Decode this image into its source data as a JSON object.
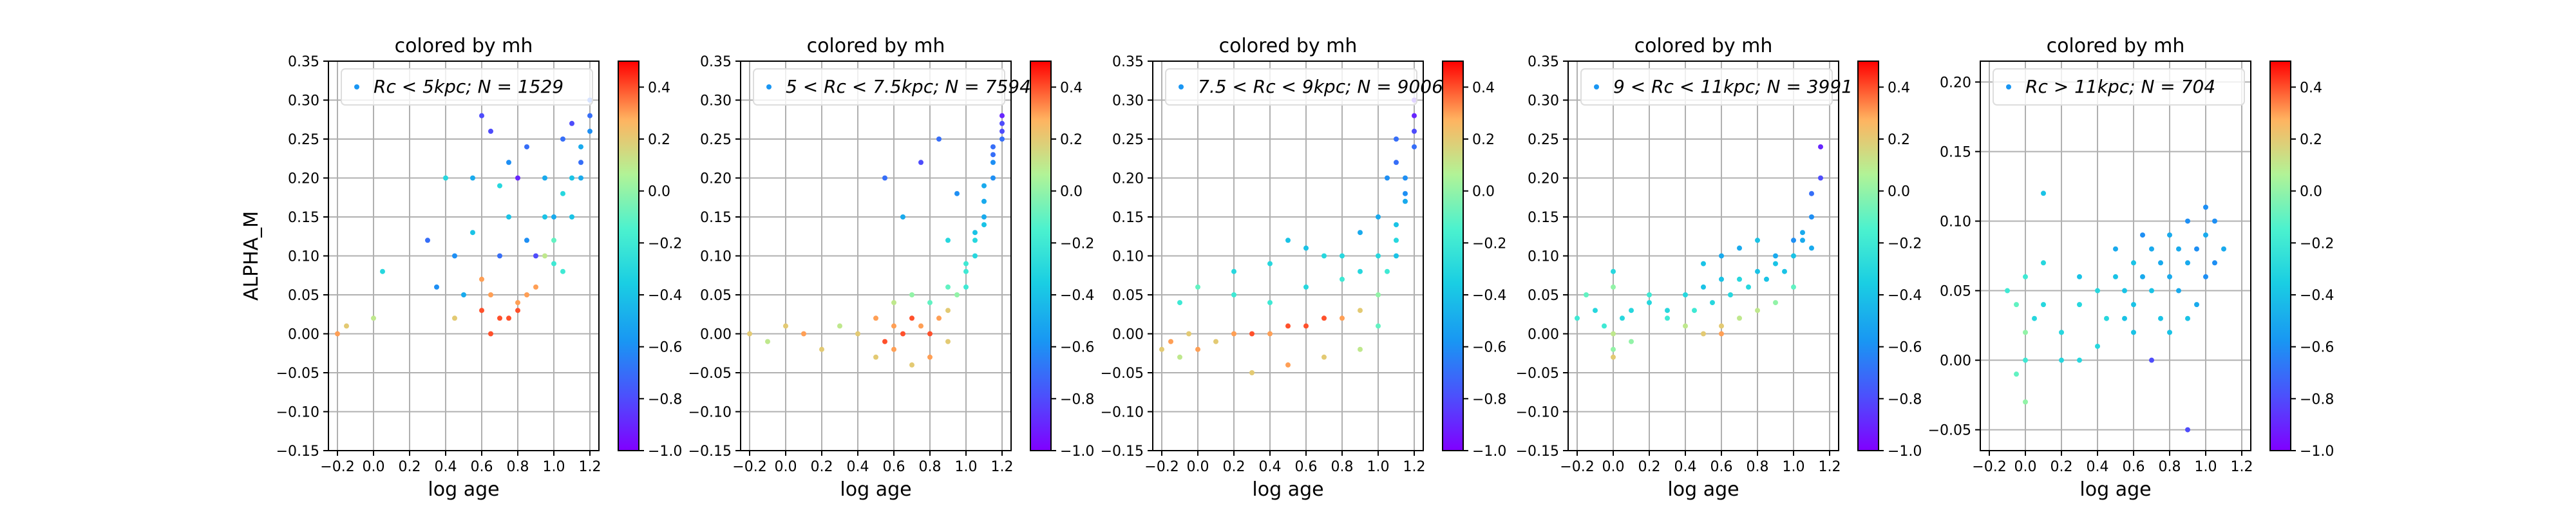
{
  "figure": {
    "background": "#ffffff"
  },
  "chart_data": [
    {
      "type": "scatter",
      "title": "colored by mh",
      "xlabel": "log age",
      "ylabel": "ALPHA_M",
      "xlim": [
        -0.25,
        1.25
      ],
      "ylim": [
        -0.15,
        0.35
      ],
      "xticks": [
        -0.2,
        0.0,
        0.2,
        0.4,
        0.6,
        0.8,
        1.0,
        1.2
      ],
      "yticks": [
        -0.15,
        -0.1,
        -0.05,
        0.0,
        0.05,
        0.1,
        0.15,
        0.2,
        0.25,
        0.3,
        0.35
      ],
      "grid": true,
      "legend": {
        "placement": "top",
        "label_prefix": "Rc < 5kpc;",
        "label_n": "N = 1529"
      },
      "colorbar": {
        "min": -1.0,
        "max": 0.5,
        "ticks": [
          -1.0,
          -0.8,
          -0.6,
          -0.4,
          -0.2,
          0.0,
          0.2,
          0.4
        ],
        "colormap": "rainbow"
      },
      "series": [
        {
          "x": [
            -0.2,
            -0.15,
            0.0,
            0.05,
            0.3,
            0.35,
            0.4,
            0.45,
            0.5,
            0.55,
            0.6,
            0.6,
            0.65,
            0.7,
            0.7,
            0.75,
            0.8,
            0.8,
            0.85,
            0.9,
            0.95,
            1.0,
            1.0,
            1.05,
            1.1,
            1.15,
            1.2,
            0.6,
            0.65,
            0.7,
            0.75,
            0.8,
            0.85,
            0.9,
            0.95,
            1.0,
            1.05,
            1.1,
            1.15,
            1.2,
            1.05,
            1.1,
            1.15,
            1.2,
            0.45,
            0.55,
            0.65,
            0.75,
            0.85,
            0.95
          ],
          "y": [
            0.0,
            0.01,
            0.02,
            0.08,
            0.12,
            0.06,
            0.2,
            0.02,
            0.05,
            0.13,
            0.28,
            0.07,
            0.0,
            0.1,
            0.19,
            0.15,
            0.04,
            0.2,
            0.12,
            0.1,
            0.2,
            0.09,
            0.15,
            0.25,
            0.27,
            0.22,
            0.3,
            0.03,
            0.05,
            0.02,
            0.02,
            0.03,
            0.05,
            0.06,
            0.1,
            0.12,
            0.18,
            0.2,
            0.24,
            0.26,
            0.08,
            0.15,
            0.2,
            0.28,
            0.1,
            0.2,
            0.26,
            0.22,
            0.24,
            0.15
          ],
          "c": [
            0.3,
            0.2,
            0.1,
            -0.3,
            -0.7,
            -0.6,
            -0.3,
            0.2,
            -0.5,
            -0.4,
            -0.8,
            0.3,
            0.4,
            -0.7,
            -0.3,
            -0.4,
            0.3,
            -0.9,
            -0.6,
            -0.8,
            -0.5,
            -0.2,
            -0.5,
            -0.7,
            -0.8,
            -0.7,
            -0.7,
            0.4,
            0.3,
            0.4,
            0.4,
            0.4,
            0.3,
            0.3,
            0.1,
            -0.1,
            -0.3,
            -0.4,
            -0.5,
            -0.6,
            -0.2,
            -0.4,
            -0.5,
            -0.7,
            -0.6,
            -0.5,
            -0.8,
            -0.6,
            -0.7,
            -0.4
          ]
        }
      ]
    },
    {
      "type": "scatter",
      "title": "colored by mh",
      "xlabel": "log age",
      "ylabel": "",
      "xlim": [
        -0.25,
        1.25
      ],
      "ylim": [
        -0.15,
        0.35
      ],
      "xticks": [
        -0.2,
        0.0,
        0.2,
        0.4,
        0.6,
        0.8,
        1.0,
        1.2
      ],
      "yticks": [
        -0.15,
        -0.1,
        -0.05,
        0.0,
        0.05,
        0.1,
        0.15,
        0.2,
        0.25,
        0.3,
        0.35
      ],
      "grid": true,
      "legend": {
        "placement": "top",
        "label_prefix": "5 < Rc < 7.5kpc;",
        "label_n": "N = 7594"
      },
      "colorbar": {
        "min": -1.0,
        "max": 0.5,
        "ticks": [
          -1.0,
          -0.8,
          -0.6,
          -0.4,
          -0.2,
          0.0,
          0.2,
          0.4
        ],
        "colormap": "rainbow"
      },
      "series": [
        {
          "x": [
            -0.2,
            -0.1,
            0.0,
            0.1,
            0.2,
            0.3,
            0.4,
            0.5,
            0.55,
            0.6,
            0.65,
            0.7,
            0.75,
            0.8,
            0.85,
            0.9,
            0.95,
            1.0,
            1.05,
            1.1,
            1.15,
            1.2,
            0.6,
            0.7,
            0.8,
            0.9,
            1.0,
            1.1,
            1.15,
            1.2,
            0.5,
            0.6,
            0.7,
            0.8,
            0.9,
            1.0,
            1.05,
            1.1,
            1.15,
            1.2,
            0.55,
            0.65,
            0.75,
            0.85,
            0.95,
            1.05,
            1.1,
            1.15,
            1.2,
            0.9
          ],
          "y": [
            0.0,
            -0.01,
            0.01,
            0.0,
            -0.02,
            0.01,
            0.0,
            0.02,
            -0.01,
            0.01,
            0.0,
            0.02,
            0.01,
            0.0,
            0.02,
            0.03,
            0.05,
            0.08,
            0.12,
            0.17,
            0.22,
            0.25,
            0.04,
            0.05,
            0.04,
            0.06,
            0.09,
            0.14,
            0.2,
            0.27,
            -0.03,
            -0.02,
            -0.04,
            -0.03,
            -0.01,
            0.06,
            0.1,
            0.15,
            0.24,
            0.28,
            0.2,
            0.15,
            0.22,
            0.25,
            0.18,
            0.13,
            0.19,
            0.23,
            0.26,
            0.12
          ],
          "c": [
            0.2,
            0.1,
            0.2,
            0.3,
            0.2,
            0.1,
            0.2,
            0.3,
            0.4,
            0.3,
            0.4,
            0.4,
            0.3,
            0.4,
            0.3,
            0.2,
            0.0,
            -0.2,
            -0.3,
            -0.5,
            -0.6,
            -0.7,
            0.1,
            0.0,
            -0.1,
            -0.1,
            -0.2,
            -0.4,
            -0.6,
            -0.8,
            0.2,
            0.3,
            0.2,
            0.3,
            0.2,
            -0.2,
            -0.3,
            -0.5,
            -0.7,
            -0.9,
            -0.7,
            -0.5,
            -0.8,
            -0.7,
            -0.6,
            -0.4,
            -0.5,
            -0.7,
            -0.8,
            -0.3
          ]
        }
      ]
    },
    {
      "type": "scatter",
      "title": "colored by mh",
      "xlabel": "log age",
      "ylabel": "",
      "xlim": [
        -0.25,
        1.25
      ],
      "ylim": [
        -0.15,
        0.35
      ],
      "xticks": [
        -0.2,
        0.0,
        0.2,
        0.4,
        0.6,
        0.8,
        1.0,
        1.2
      ],
      "yticks": [
        -0.15,
        -0.1,
        -0.05,
        0.0,
        0.05,
        0.1,
        0.15,
        0.2,
        0.25,
        0.3,
        0.35
      ],
      "grid": true,
      "legend": {
        "placement": "top",
        "label_prefix": "7.5 < Rc < 9kpc;",
        "label_n": "N = 9006"
      },
      "colorbar": {
        "min": -1.0,
        "max": 0.5,
        "ticks": [
          -1.0,
          -0.8,
          -0.6,
          -0.4,
          -0.2,
          0.0,
          0.2,
          0.4
        ],
        "colormap": "rainbow"
      },
      "series": [
        {
          "x": [
            -0.2,
            -0.15,
            -0.1,
            -0.05,
            0.0,
            0.1,
            0.2,
            0.3,
            0.4,
            0.5,
            0.6,
            0.7,
            0.8,
            0.9,
            1.0,
            1.05,
            1.1,
            1.15,
            1.2,
            -0.1,
            0.0,
            0.2,
            0.4,
            0.6,
            0.8,
            0.9,
            1.0,
            1.1,
            1.15,
            1.2,
            0.3,
            0.5,
            0.7,
            0.9,
            1.0,
            1.1,
            1.15,
            1.2,
            0.5,
            0.7,
            0.9,
            1.0,
            1.05,
            1.1,
            0.2,
            0.4,
            0.6,
            0.8,
            1.1,
            1.2
          ],
          "y": [
            -0.02,
            -0.01,
            -0.03,
            0.0,
            -0.02,
            -0.01,
            0.0,
            0.0,
            0.0,
            0.01,
            0.01,
            0.02,
            0.02,
            0.03,
            0.05,
            0.08,
            0.12,
            0.17,
            0.24,
            0.04,
            0.06,
            0.05,
            0.04,
            0.06,
            0.07,
            0.08,
            0.1,
            0.14,
            0.2,
            0.26,
            -0.05,
            -0.04,
            -0.03,
            -0.02,
            0.01,
            0.1,
            0.18,
            0.28,
            0.12,
            0.1,
            0.13,
            0.15,
            0.2,
            0.22,
            0.08,
            0.09,
            0.11,
            0.1,
            0.25,
            0.3
          ],
          "c": [
            0.2,
            0.3,
            0.1,
            0.2,
            0.3,
            0.2,
            0.3,
            0.4,
            0.3,
            0.4,
            0.4,
            0.4,
            0.3,
            0.2,
            0.0,
            -0.2,
            -0.3,
            -0.5,
            -0.7,
            -0.2,
            -0.1,
            -0.2,
            -0.2,
            -0.3,
            -0.2,
            -0.3,
            -0.3,
            -0.4,
            -0.6,
            -0.8,
            0.2,
            0.3,
            0.2,
            0.1,
            -0.1,
            -0.4,
            -0.6,
            -0.9,
            -0.4,
            -0.3,
            -0.5,
            -0.5,
            -0.6,
            -0.7,
            -0.3,
            -0.3,
            -0.4,
            -0.3,
            -0.7,
            -0.9
          ]
        }
      ]
    },
    {
      "type": "scatter",
      "title": "colored by mh",
      "xlabel": "log age",
      "ylabel": "",
      "xlim": [
        -0.25,
        1.25
      ],
      "ylim": [
        -0.15,
        0.35
      ],
      "xticks": [
        -0.2,
        0.0,
        0.2,
        0.4,
        0.6,
        0.8,
        1.0,
        1.2
      ],
      "yticks": [
        -0.15,
        -0.1,
        -0.05,
        0.0,
        0.05,
        0.1,
        0.15,
        0.2,
        0.25,
        0.3,
        0.35
      ],
      "grid": true,
      "legend": {
        "placement": "top",
        "label_prefix": "9 < Rc < 11kpc;",
        "label_n": "N = 3991"
      },
      "colorbar": {
        "min": -1.0,
        "max": 0.5,
        "ticks": [
          -1.0,
          -0.8,
          -0.6,
          -0.4,
          -0.2,
          0.0,
          0.2,
          0.4
        ],
        "colormap": "rainbow"
      },
      "series": [
        {
          "x": [
            -0.2,
            -0.1,
            -0.05,
            0.0,
            0.0,
            0.05,
            0.1,
            0.2,
            0.3,
            0.4,
            0.5,
            0.6,
            0.7,
            0.8,
            0.9,
            1.0,
            1.05,
            1.1,
            1.15,
            -0.15,
            0.0,
            0.2,
            0.4,
            0.5,
            0.6,
            0.7,
            0.8,
            0.9,
            1.0,
            1.1,
            0.3,
            0.45,
            0.55,
            0.65,
            0.75,
            0.85,
            0.95,
            1.05,
            1.1,
            1.15,
            0.5,
            0.6,
            0.7,
            0.8,
            0.9,
            1.0,
            0.0,
            0.0,
            0.1,
            0.6
          ],
          "y": [
            0.02,
            0.03,
            0.01,
            0.0,
            -0.03,
            0.02,
            0.03,
            0.04,
            0.03,
            0.05,
            0.06,
            0.07,
            0.07,
            0.08,
            0.09,
            0.1,
            0.12,
            0.15,
            0.2,
            0.05,
            0.06,
            0.05,
            0.01,
            0.0,
            0.01,
            0.02,
            0.03,
            0.04,
            0.06,
            0.11,
            0.02,
            0.03,
            0.04,
            0.05,
            0.06,
            0.07,
            0.08,
            0.13,
            0.18,
            0.24,
            0.09,
            0.1,
            0.11,
            0.12,
            0.1,
            0.12,
            -0.02,
            0.08,
            -0.01,
            0.0
          ],
          "c": [
            -0.2,
            -0.3,
            -0.2,
            0.1,
            0.2,
            -0.3,
            -0.3,
            -0.3,
            -0.3,
            -0.3,
            -0.4,
            -0.4,
            -0.3,
            -0.4,
            -0.4,
            -0.4,
            -0.5,
            -0.6,
            -0.8,
            -0.1,
            0.0,
            -0.2,
            0.1,
            0.2,
            0.2,
            0.1,
            0.1,
            0.0,
            -0.1,
            -0.5,
            -0.2,
            -0.2,
            -0.3,
            -0.3,
            -0.3,
            -0.4,
            -0.4,
            -0.5,
            -0.7,
            -0.9,
            -0.4,
            -0.5,
            -0.5,
            -0.4,
            -0.5,
            -0.6,
            0.0,
            -0.3,
            0.0,
            0.3
          ]
        }
      ]
    },
    {
      "type": "scatter",
      "title": "colored by mh",
      "xlabel": "log age",
      "ylabel": "",
      "xlim": [
        -0.25,
        1.25
      ],
      "ylim": [
        -0.065,
        0.215
      ],
      "xticks": [
        -0.2,
        0.0,
        0.2,
        0.4,
        0.6,
        0.8,
        1.0,
        1.2
      ],
      "yticks": [
        -0.05,
        0.0,
        0.05,
        0.1,
        0.15,
        0.2
      ],
      "grid": true,
      "legend": {
        "placement": "top",
        "label_prefix": "Rc > 11kpc;",
        "label_n": "N = 704"
      },
      "colorbar": {
        "min": -1.0,
        "max": 0.5,
        "ticks": [
          -1.0,
          -0.8,
          -0.6,
          -0.4,
          -0.2,
          0.0,
          0.2,
          0.4
        ],
        "colormap": "rainbow"
      },
      "series": [
        {
          "x": [
            -0.1,
            -0.05,
            0.0,
            0.0,
            0.0,
            0.05,
            0.1,
            0.2,
            0.3,
            0.4,
            0.45,
            0.5,
            0.55,
            0.6,
            0.6,
            0.65,
            0.7,
            0.7,
            0.75,
            0.8,
            0.8,
            0.85,
            0.9,
            0.9,
            0.95,
            1.0,
            1.0,
            1.05,
            1.1,
            0.7,
            0.8,
            0.9,
            1.0,
            0.5,
            0.3,
            0.2,
            0.0,
            -0.05,
            0.1,
            0.6,
            0.75,
            0.85,
            0.95,
            1.05,
            0.4,
            0.55,
            0.65,
            0.9,
            0.3,
            0.1
          ],
          "y": [
            0.05,
            0.04,
            0.02,
            0.0,
            -0.03,
            0.03,
            0.12,
            0.02,
            0.04,
            0.05,
            0.03,
            0.06,
            0.05,
            0.07,
            0.04,
            0.06,
            0.08,
            0.05,
            0.07,
            0.09,
            0.06,
            0.08,
            0.1,
            0.07,
            0.08,
            0.09,
            0.11,
            0.1,
            0.08,
            0.0,
            0.02,
            0.03,
            0.06,
            0.08,
            0.06,
            0.0,
            0.06,
            -0.01,
            0.04,
            0.02,
            0.03,
            0.05,
            0.04,
            0.07,
            0.01,
            0.03,
            0.09,
            -0.05,
            0.0,
            0.07
          ],
          "c": [
            -0.2,
            -0.1,
            0.0,
            -0.2,
            0.0,
            -0.3,
            -0.4,
            -0.3,
            -0.3,
            -0.3,
            -0.3,
            -0.4,
            -0.4,
            -0.4,
            -0.4,
            -0.5,
            -0.5,
            -0.4,
            -0.5,
            -0.5,
            -0.5,
            -0.5,
            -0.6,
            -0.5,
            -0.6,
            -0.5,
            -0.6,
            -0.6,
            -0.5,
            -0.8,
            -0.4,
            -0.4,
            -0.6,
            -0.5,
            -0.4,
            -0.3,
            -0.2,
            -0.1,
            -0.3,
            -0.4,
            -0.4,
            -0.5,
            -0.5,
            -0.6,
            -0.3,
            -0.4,
            -0.6,
            -0.8,
            -0.3,
            -0.3
          ]
        }
      ]
    }
  ]
}
